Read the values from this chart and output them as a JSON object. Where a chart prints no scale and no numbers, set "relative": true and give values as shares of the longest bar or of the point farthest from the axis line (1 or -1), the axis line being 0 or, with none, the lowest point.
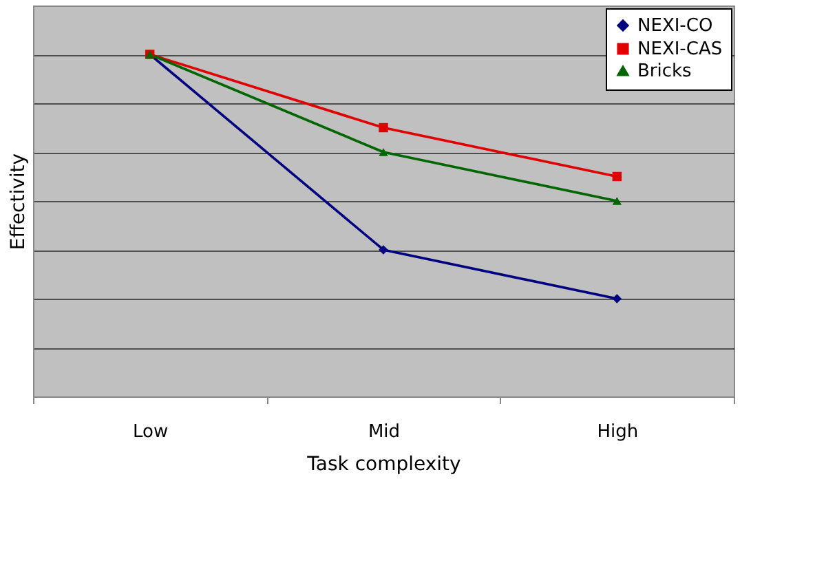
{
  "chart_data": {
    "type": "line",
    "relative": true,
    "xlabel": "Task complexity",
    "ylabel": "Effectivity",
    "categories": [
      "Low",
      "Mid",
      "High"
    ],
    "series": [
      {
        "name": "NEXI-CO",
        "color": "#000080",
        "marker": "diamond",
        "values": [
          1,
          0.4286,
          0.2857
        ]
      },
      {
        "name": "NEXI-CAS",
        "color": "#e00000",
        "marker": "square",
        "values": [
          1,
          0.7857,
          0.6429
        ]
      },
      {
        "name": "Bricks",
        "color": "#006600",
        "marker": "triangle",
        "values": [
          1,
          0.7143,
          0.5714
        ]
      }
    ],
    "grid": "y",
    "legend": "top right"
  }
}
